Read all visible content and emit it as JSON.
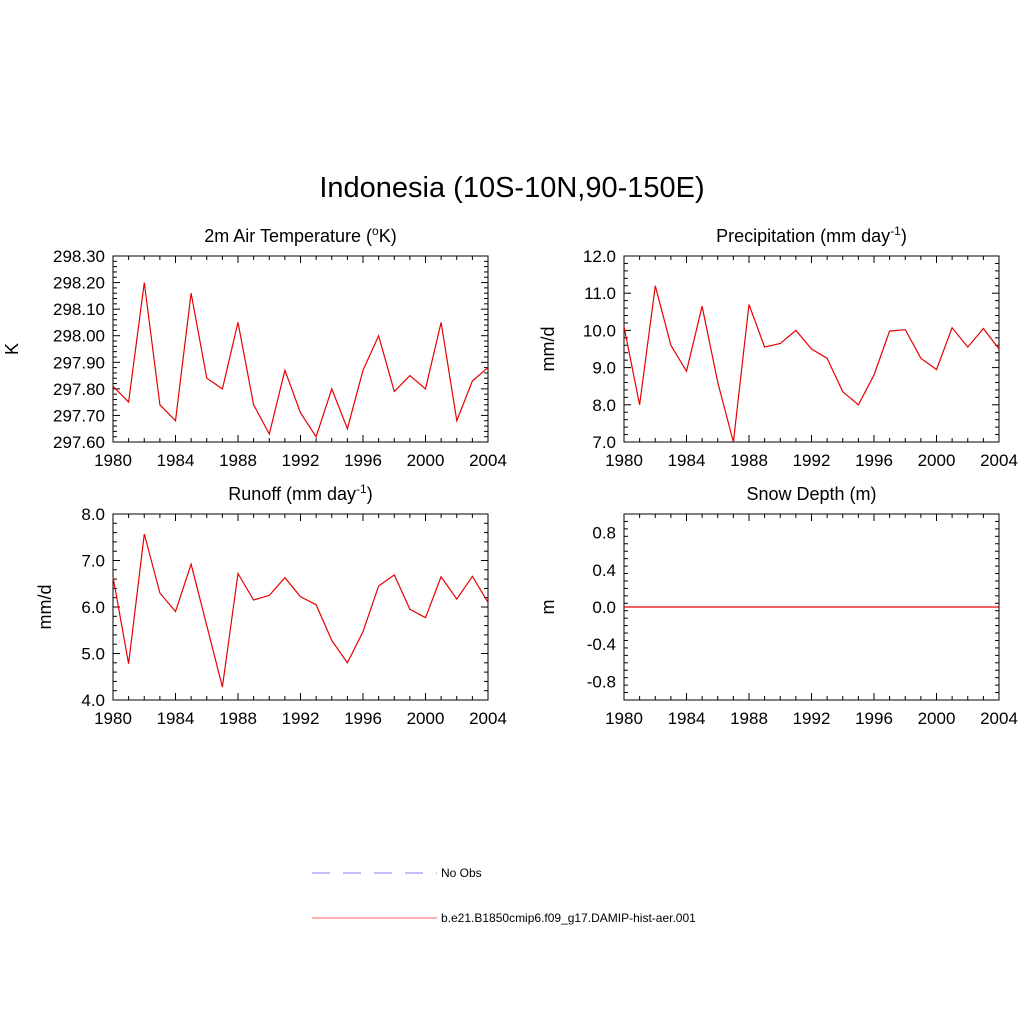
{
  "title": "Indonesia (10S-10N,90-150E)",
  "legend": [
    {
      "label": "No Obs",
      "color": "#9999ff",
      "style": "dashed"
    },
    {
      "label": "b.e21.B1850cmip6.f09_g17.DAMIP-hist-aer.001",
      "color": "#ff8080",
      "style": "solid"
    }
  ],
  "chart_data": [
    {
      "type": "line",
      "title": "2m Air Temperature (°K)",
      "title_main": "2m Air Temperature (",
      "title_sup": "o",
      "title_after": "K)",
      "xlabel": "",
      "ylabel": "K",
      "xlim": [
        1980,
        2004
      ],
      "ylim": [
        297.6,
        298.3
      ],
      "x_ticks": [
        "1980",
        "1984",
        "1988",
        "1992",
        "1996",
        "2000",
        "2004"
      ],
      "y_ticks": [
        "297.60",
        "297.70",
        "297.80",
        "297.90",
        "298.00",
        "298.10",
        "298.20",
        "298.30"
      ],
      "x": [
        1980,
        1981,
        1982,
        1983,
        1984,
        1985,
        1986,
        1987,
        1988,
        1989,
        1990,
        1991,
        1992,
        1993,
        1994,
        1995,
        1996,
        1997,
        1998,
        1999,
        2000,
        2001,
        2002,
        2003,
        2004
      ],
      "series": [
        {
          "values": [
            297.81,
            297.75,
            298.2,
            297.74,
            297.68,
            298.16,
            297.84,
            297.8,
            298.05,
            297.74,
            297.63,
            297.87,
            297.71,
            297.62,
            297.8,
            297.65,
            297.87,
            298.0,
            297.79,
            297.85,
            297.8,
            298.05,
            297.68,
            297.83,
            297.88
          ],
          "color": "#e60000"
        }
      ]
    },
    {
      "type": "line",
      "title": "Precipitation (mm day-1)",
      "title_main": "Precipitation (mm day",
      "title_sup": "-1",
      "title_after": ")",
      "xlabel": "",
      "ylabel": "mm/d",
      "xlim": [
        1980,
        2004
      ],
      "ylim": [
        7.0,
        12.0
      ],
      "x_ticks": [
        "1980",
        "1984",
        "1988",
        "1992",
        "1996",
        "2000",
        "2004"
      ],
      "y_ticks": [
        "7.0",
        "8.0",
        "9.0",
        "10.0",
        "11.0",
        "12.0"
      ],
      "x": [
        1980,
        1981,
        1982,
        1983,
        1984,
        1985,
        1986,
        1987,
        1988,
        1989,
        1990,
        1991,
        1992,
        1993,
        1994,
        1995,
        1996,
        1997,
        1998,
        1999,
        2000,
        2001,
        2002,
        2003,
        2004
      ],
      "series": [
        {
          "values": [
            10.1,
            8.0,
            11.2,
            9.6,
            8.9,
            10.65,
            8.6,
            7.0,
            10.7,
            9.55,
            9.65,
            10.0,
            9.5,
            9.25,
            8.35,
            8.0,
            8.8,
            9.98,
            10.02,
            9.25,
            8.95,
            10.07,
            9.55,
            10.05,
            9.5
          ],
          "color": "#e60000"
        }
      ]
    },
    {
      "type": "line",
      "title": "Runoff (mm day-1)",
      "title_main": "Runoff (mm day",
      "title_sup": "-1",
      "title_after": ")",
      "xlabel": "",
      "ylabel": "mm/d",
      "xlim": [
        1980,
        2004
      ],
      "ylim": [
        4.0,
        8.0
      ],
      "x_ticks": [
        "1980",
        "1984",
        "1988",
        "1992",
        "1996",
        "2000",
        "2004"
      ],
      "y_ticks": [
        "4.0",
        "5.0",
        "6.0",
        "7.0",
        "8.0"
      ],
      "x": [
        1980,
        1981,
        1982,
        1983,
        1984,
        1985,
        1986,
        1987,
        1988,
        1989,
        1990,
        1991,
        1992,
        1993,
        1994,
        1995,
        1996,
        1997,
        1998,
        1999,
        2000,
        2001,
        2002,
        2003,
        2004
      ],
      "series": [
        {
          "values": [
            6.65,
            4.78,
            7.57,
            6.3,
            5.9,
            6.92,
            5.6,
            4.28,
            6.72,
            6.15,
            6.25,
            6.63,
            6.22,
            6.05,
            5.28,
            4.8,
            5.47,
            6.45,
            6.69,
            5.95,
            5.77,
            6.65,
            6.17,
            6.66,
            6.1
          ],
          "color": "#e60000"
        }
      ]
    },
    {
      "type": "line",
      "title": "Snow Depth (m)",
      "title_main": "Snow Depth (m)",
      "title_sup": "",
      "title_after": "",
      "xlabel": "",
      "ylabel": "m",
      "xlim": [
        1980,
        2004
      ],
      "ylim": [
        -1.0,
        1.0
      ],
      "x_ticks": [
        "1980",
        "1984",
        "1988",
        "1992",
        "1996",
        "2000",
        "2004"
      ],
      "y_ticks": [
        "-0.8",
        "-0.4",
        "0.0",
        "0.4",
        "0.8"
      ],
      "x": [
        1980,
        1981,
        1982,
        1983,
        1984,
        1985,
        1986,
        1987,
        1988,
        1989,
        1990,
        1991,
        1992,
        1993,
        1994,
        1995,
        1996,
        1997,
        1998,
        1999,
        2000,
        2001,
        2002,
        2003,
        2004
      ],
      "series": [
        {
          "values": [
            0,
            0,
            0,
            0,
            0,
            0,
            0,
            0,
            0,
            0,
            0,
            0,
            0,
            0,
            0,
            0,
            0,
            0,
            0,
            0,
            0,
            0,
            0,
            0,
            0
          ],
          "color": "#e60000"
        }
      ]
    }
  ]
}
